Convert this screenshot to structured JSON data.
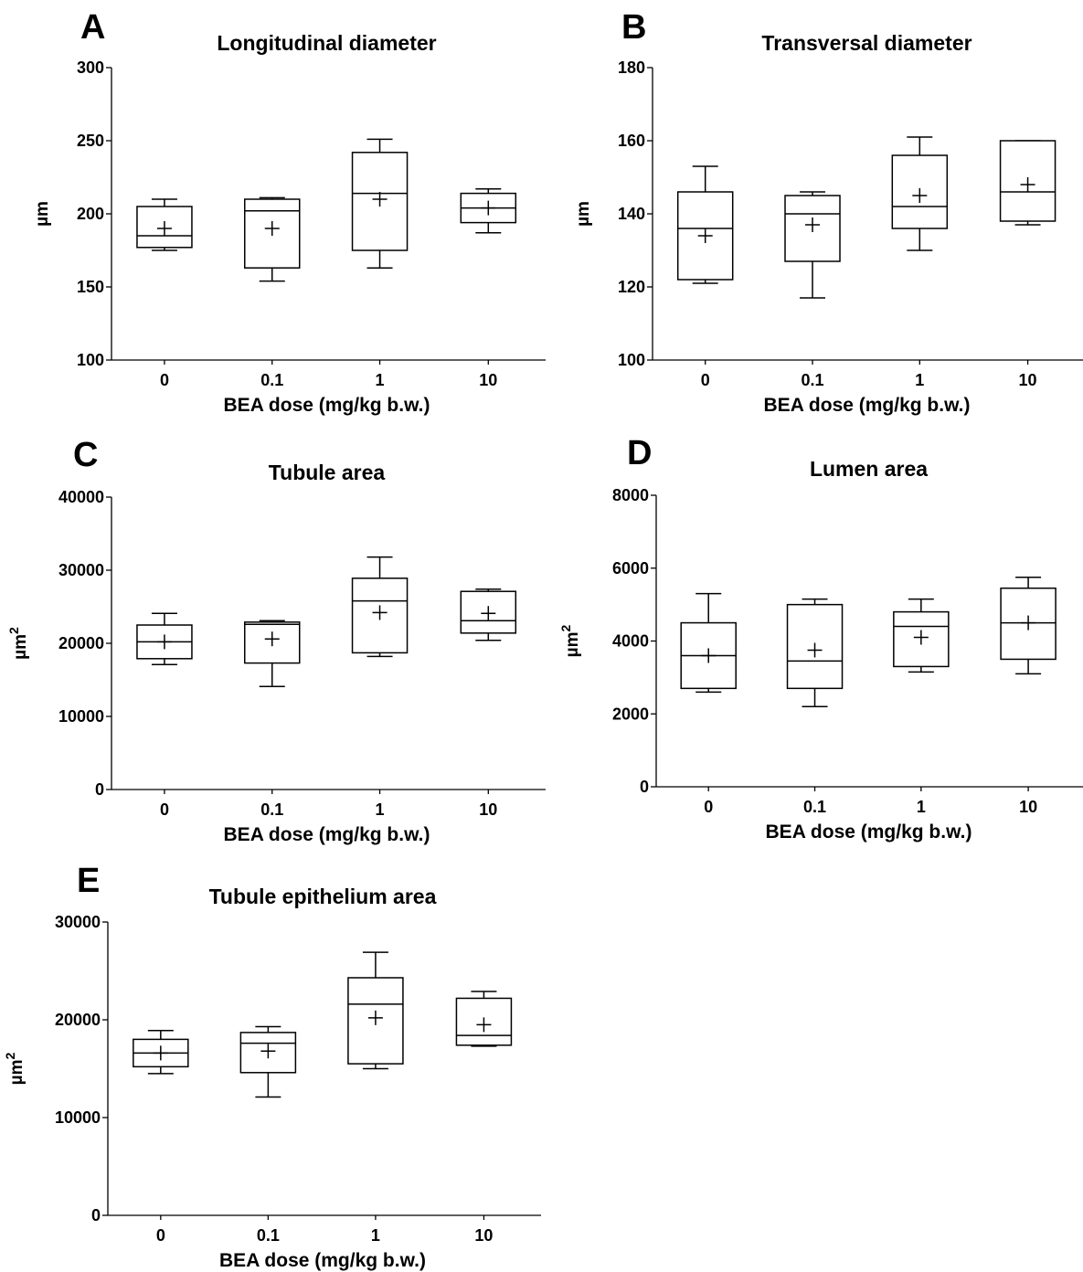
{
  "chart_data": [
    {
      "type": "box",
      "panel": "A",
      "title": "Longitudinal diameter",
      "xlabel": "BEA dose (mg/kg b.w.)",
      "ylabel": "µm",
      "ylabel_sup": "",
      "ylim": [
        100,
        300
      ],
      "yticks": [
        "100",
        "150",
        "200",
        "250",
        "300"
      ],
      "categories": [
        "0",
        "0.1",
        "1",
        "10"
      ],
      "boxes": [
        {
          "min": 175,
          "q1": 177,
          "median": 185,
          "q3": 205,
          "max": 210,
          "mean": 190
        },
        {
          "min": 154,
          "q1": 163,
          "median": 202,
          "q3": 210,
          "max": 211,
          "mean": 190
        },
        {
          "min": 163,
          "q1": 175,
          "median": 214,
          "q3": 242,
          "max": 251,
          "mean": 210
        },
        {
          "min": 187,
          "q1": 194,
          "median": 204,
          "q3": 214,
          "max": 217,
          "mean": 204
        }
      ]
    },
    {
      "type": "box",
      "panel": "B",
      "title": "Transversal diameter",
      "xlabel": "BEA dose (mg/kg b.w.)",
      "ylabel": "µm",
      "ylabel_sup": "",
      "ylim": [
        100,
        180
      ],
      "yticks": [
        "100",
        "120",
        "140",
        "160",
        "180"
      ],
      "categories": [
        "0",
        "0.1",
        "1",
        "10"
      ],
      "boxes": [
        {
          "min": 121,
          "q1": 122,
          "median": 136,
          "q3": 146,
          "max": 153,
          "mean": 134
        },
        {
          "min": 117,
          "q1": 127,
          "median": 140,
          "q3": 145,
          "max": 146,
          "mean": 137
        },
        {
          "min": 130,
          "q1": 136,
          "median": 142,
          "q3": 156,
          "max": 161,
          "mean": 145
        },
        {
          "min": 137,
          "q1": 138,
          "median": 146,
          "q3": 160,
          "max": 160,
          "mean": 148
        }
      ]
    },
    {
      "type": "box",
      "panel": "C",
      "title": "Tubule area",
      "xlabel": "BEA dose (mg/kg b.w.)",
      "ylabel": "µm",
      "ylabel_sup": "2",
      "ylim": [
        0,
        40000
      ],
      "yticks": [
        "0",
        "10000",
        "20000",
        "30000",
        "40000"
      ],
      "categories": [
        "0",
        "0.1",
        "1",
        "10"
      ],
      "boxes": [
        {
          "min": 17100,
          "q1": 17900,
          "median": 20200,
          "q3": 22500,
          "max": 24100,
          "mean": 20200
        },
        {
          "min": 14100,
          "q1": 17300,
          "median": 22600,
          "q3": 22900,
          "max": 23100,
          "mean": 20600
        },
        {
          "min": 18200,
          "q1": 18700,
          "median": 25800,
          "q3": 28900,
          "max": 31800,
          "mean": 24200
        },
        {
          "min": 20400,
          "q1": 21400,
          "median": 23100,
          "q3": 27100,
          "max": 27400,
          "mean": 24100
        }
      ]
    },
    {
      "type": "box",
      "panel": "D",
      "title": "Lumen area",
      "xlabel": "BEA dose (mg/kg b.w.)",
      "ylabel": "µm",
      "ylabel_sup": "2",
      "ylim": [
        0,
        8000
      ],
      "yticks": [
        "0",
        "2000",
        "4000",
        "6000",
        "8000"
      ],
      "categories": [
        "0",
        "0.1",
        "1",
        "10"
      ],
      "boxes": [
        {
          "min": 2600,
          "q1": 2700,
          "median": 3600,
          "q3": 4500,
          "max": 5300,
          "mean": 3600
        },
        {
          "min": 2200,
          "q1": 2700,
          "median": 3450,
          "q3": 5000,
          "max": 5150,
          "mean": 3750
        },
        {
          "min": 3150,
          "q1": 3300,
          "median": 4400,
          "q3": 4800,
          "max": 5150,
          "mean": 4100
        },
        {
          "min": 3100,
          "q1": 3500,
          "median": 4500,
          "q3": 5450,
          "max": 5750,
          "mean": 4500
        }
      ]
    },
    {
      "type": "box",
      "panel": "E",
      "title": "Tubule epithelium area",
      "xlabel": "BEA dose (mg/kg b.w.)",
      "ylabel": "µm",
      "ylabel_sup": "2",
      "ylim": [
        0,
        30000
      ],
      "yticks": [
        "0",
        "10000",
        "20000",
        "30000"
      ],
      "categories": [
        "0",
        "0.1",
        "1",
        "10"
      ],
      "boxes": [
        {
          "min": 14500,
          "q1": 15200,
          "median": 16600,
          "q3": 18000,
          "max": 18900,
          "mean": 16600
        },
        {
          "min": 12100,
          "q1": 14600,
          "median": 17600,
          "q3": 18700,
          "max": 19300,
          "mean": 16800
        },
        {
          "min": 15000,
          "q1": 15500,
          "median": 21600,
          "q3": 24300,
          "max": 26900,
          "mean": 20200
        },
        {
          "min": 17300,
          "q1": 17400,
          "median": 18400,
          "q3": 22200,
          "max": 22900,
          "mean": 19500
        }
      ]
    }
  ]
}
